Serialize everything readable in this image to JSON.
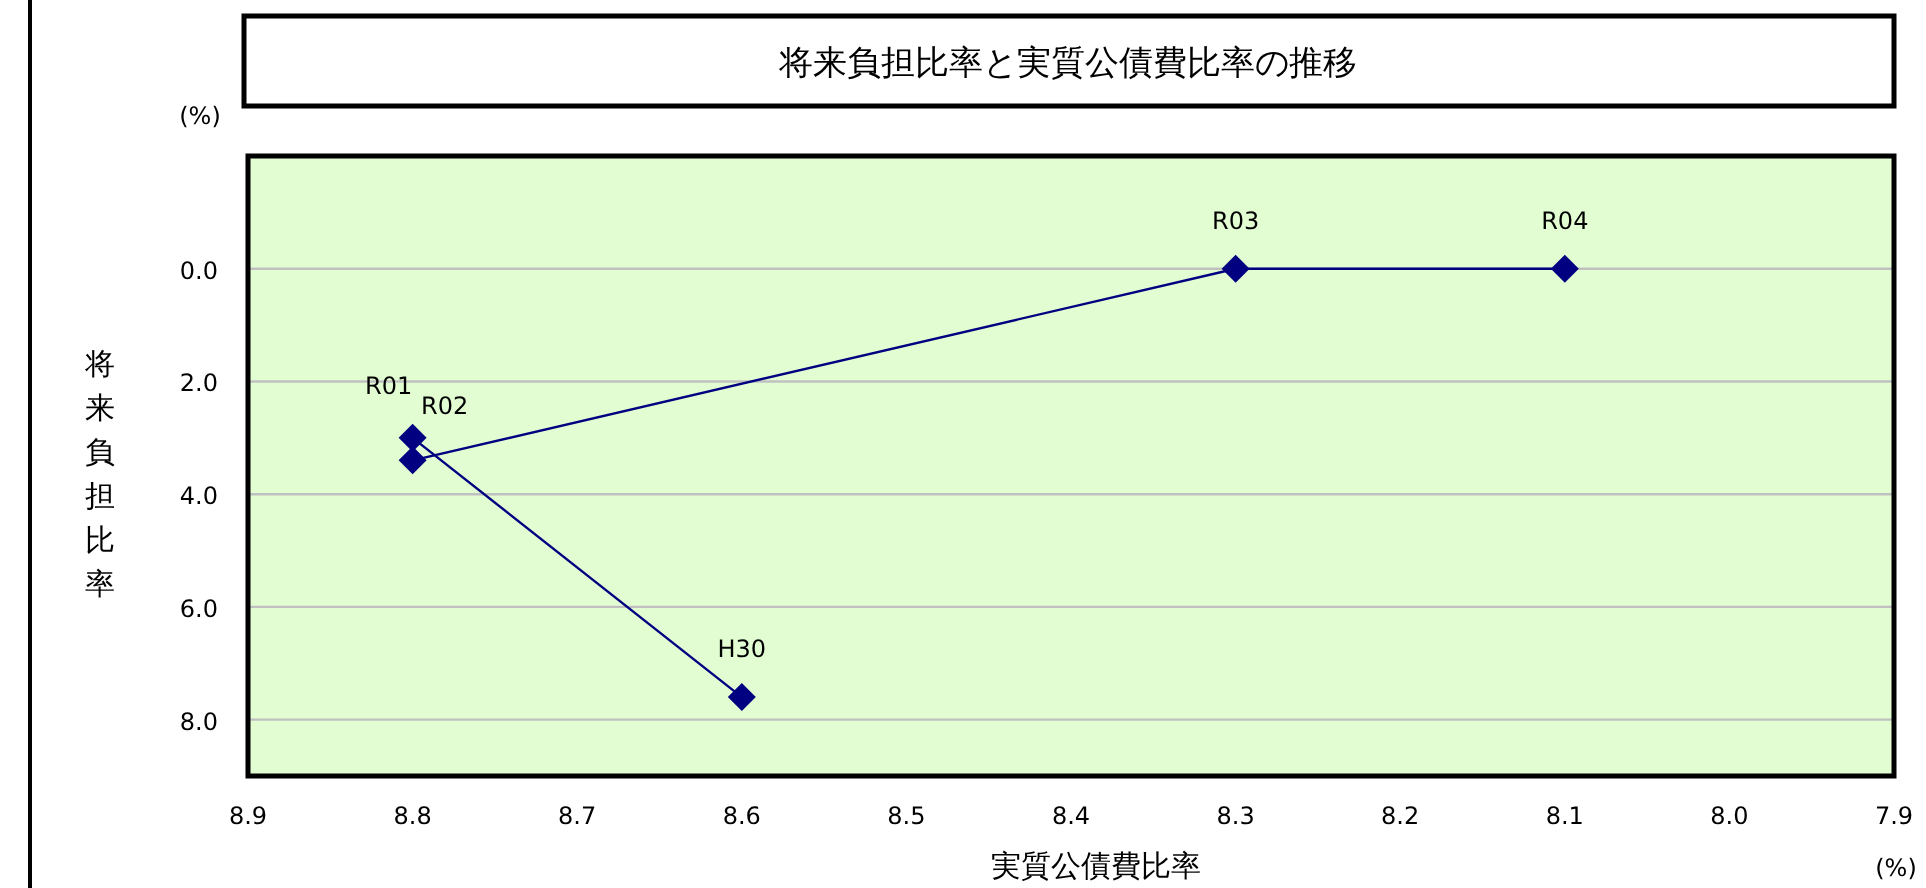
{
  "chart_data": {
    "type": "line",
    "title": "将来負担比率と実質公債費比率の推移",
    "xlabel": "実質公債費比率",
    "ylabel": "将来負担比率",
    "series": [
      {
        "color": "#000080",
        "x": [
          8.6,
          8.8,
          8.8,
          8.3,
          8.1
        ],
        "values": [
          7.6,
          3.0,
          3.4,
          0.0,
          0.0
        ]
      }
    ],
    "marker": "diamond",
    "line_style": "solid",
    "xlim": [
      8.9,
      7.9
    ],
    "xticks": [
      {
        "value": 8.9,
        "label": "8.9"
      },
      {
        "value": 8.8,
        "label": "8.8"
      },
      {
        "value": 8.7,
        "label": "8.7"
      },
      {
        "value": 8.6,
        "label": "8.6"
      },
      {
        "value": 8.5,
        "label": "8.5"
      },
      {
        "value": 8.4,
        "label": "8.4"
      },
      {
        "value": 8.3,
        "label": "8.3"
      },
      {
        "value": 8.2,
        "label": "8.2"
      },
      {
        "value": 8.1,
        "label": "8.1"
      },
      {
        "value": 8.0,
        "label": "8.0"
      },
      {
        "value": 7.9,
        "label": "7.9"
      }
    ],
    "ylim": [
      9,
      -2
    ],
    "yticks": [
      {
        "value": 0,
        "label": "0.0"
      },
      {
        "value": 2,
        "label": "2.0"
      },
      {
        "value": 4,
        "label": "4.0"
      },
      {
        "value": 6,
        "label": "6.0"
      },
      {
        "value": 8,
        "label": "8.0"
      }
    ],
    "grid": "y",
    "annotations": [
      {
        "text": "H30",
        "x": 8.6,
        "y": 7.6
      },
      {
        "text": "R01",
        "x": 8.8,
        "y": 3.0
      },
      {
        "text": "R02",
        "x": 8.8,
        "y": 3.4
      },
      {
        "text": "R03",
        "x": 8.3,
        "y": 0.0
      },
      {
        "text": "R04",
        "x": 8.1,
        "y": 0.0
      },
      "(%)",
      "(%)"
    ]
  }
}
